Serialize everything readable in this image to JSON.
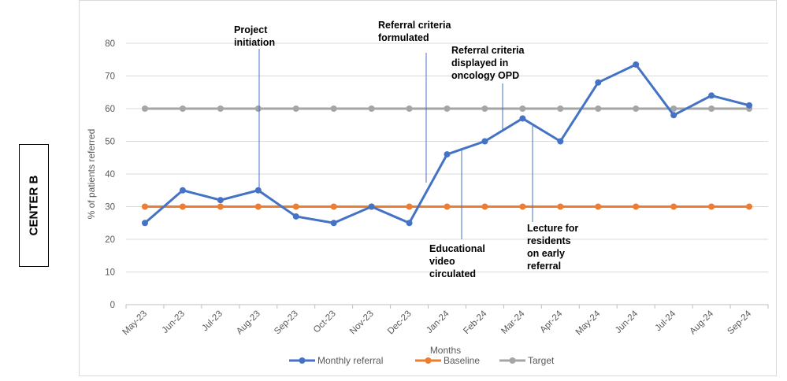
{
  "side_label": "CENTER B",
  "chart_data": {
    "type": "line",
    "categories": [
      "May-23",
      "Jun-23",
      "Jul-23",
      "Aug-23",
      "Sep-23",
      "Oct-23",
      "Nov-23",
      "Dec-23",
      "Jan-24",
      "Feb-24",
      "Mar-24",
      "Apr-24",
      "May-24",
      "Jun-24",
      "Jul-24",
      "Aug-24",
      "Sep-24"
    ],
    "series": [
      {
        "name": "Monthly referral",
        "color": "#4472c4",
        "values": [
          25,
          35,
          32,
          35,
          27,
          25,
          30,
          25,
          46,
          50,
          57,
          50,
          68,
          73.5,
          58,
          64,
          61
        ]
      },
      {
        "name": "Baseline",
        "color": "#ed7d31",
        "values": [
          30,
          30,
          30,
          30,
          30,
          30,
          30,
          30,
          30,
          30,
          30,
          30,
          30,
          30,
          30,
          30,
          30
        ]
      },
      {
        "name": "Target",
        "color": "#a5a5a5",
        "values": [
          60,
          60,
          60,
          60,
          60,
          60,
          60,
          60,
          60,
          60,
          60,
          60,
          60,
          60,
          60,
          60,
          60
        ]
      }
    ],
    "xlabel": "Months",
    "ylabel": "% of patients referred",
    "ylim": [
      0,
      80
    ],
    "yticks": [
      0,
      10,
      20,
      30,
      40,
      50,
      60,
      70,
      80
    ],
    "grid": true,
    "legend": "bottom",
    "annotations": [
      {
        "lines": [
          "Project",
          "initiation"
        ],
        "x_index": 3,
        "y_value": 35
      },
      {
        "lines": [
          "Referral criteria",
          "formulated"
        ],
        "x_index": 7.5,
        "y_value": 37
      },
      {
        "lines": [
          "Referral criteria",
          "displayed in",
          "oncology OPD"
        ],
        "x_index": 9.5,
        "y_value": 54
      },
      {
        "lines": [
          "Educational",
          "video",
          "circulated"
        ],
        "x_index": 8.4,
        "y_value": 47
      },
      {
        "lines": [
          "Lecture for",
          "residents",
          "on early",
          "referral"
        ],
        "x_index": 10.3,
        "y_value": 55
      }
    ]
  }
}
